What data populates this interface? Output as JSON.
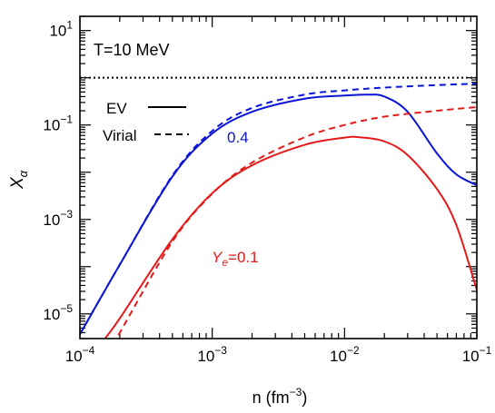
{
  "chart_data": {
    "type": "line",
    "x_scale": "log",
    "y_scale": "log",
    "xlim": [
      0.0001,
      0.1
    ],
    "ylim": [
      3e-06,
      20
    ],
    "xlabel_base": "n (fm",
    "xlabel_exp": "−3",
    "xlabel_tail": ")",
    "ylabel_main": "X",
    "ylabel_sub": "α",
    "x_ticks": [
      {
        "value": 0.0001,
        "base": "10",
        "exp": "−4"
      },
      {
        "value": 0.001,
        "base": "10",
        "exp": "−3"
      },
      {
        "value": 0.01,
        "base": "10",
        "exp": "−2"
      },
      {
        "value": 0.1,
        "base": "10",
        "exp": "−1"
      }
    ],
    "y_ticks": [
      {
        "value": 1e-05,
        "base": "10",
        "exp": "−5"
      },
      {
        "value": 0.001,
        "base": "10",
        "exp": "−3"
      },
      {
        "value": 0.1,
        "base": "10",
        "exp": "−1"
      },
      {
        "value": 10,
        "base": "10",
        "exp": "1"
      }
    ],
    "annotations": {
      "temperature": "T=10 MeV",
      "ye_high_label": "0.4",
      "ye_low_prefix": "Y",
      "ye_low_sub": "e",
      "ye_low_value": "=0.1"
    },
    "legend": {
      "placement": "top-left",
      "entries": [
        {
          "label": "EV",
          "style": "solid"
        },
        {
          "label": "Virial",
          "style": "dashed"
        }
      ]
    },
    "colors": {
      "blue": "#0a14d6",
      "red": "#e41a1a",
      "black": "#000000"
    },
    "reference_line": {
      "y": 1,
      "style": "dotted",
      "color": "#000000"
    },
    "series": [
      {
        "group": "0.4",
        "style": "solid",
        "color": "#0a14d6",
        "x": [
          0.0001,
          0.0002,
          0.0005,
          0.001,
          0.002,
          0.005,
          0.01,
          0.015,
          0.02,
          0.03,
          0.05,
          0.07,
          0.1
        ],
        "y": [
          3.7e-06,
          0.00011,
          0.0081,
          0.066,
          0.19,
          0.36,
          0.42,
          0.44,
          0.4,
          0.19,
          0.025,
          0.009,
          0.0053
        ]
      },
      {
        "group": "0.4",
        "style": "dashed",
        "color": "#0a14d6",
        "x": [
          0.0001,
          0.0002,
          0.0005,
          0.001,
          0.002,
          0.005,
          0.01,
          0.02,
          0.05,
          0.1
        ],
        "y": [
          3.7e-06,
          0.00011,
          0.0085,
          0.075,
          0.23,
          0.44,
          0.54,
          0.62,
          0.7,
          0.75
        ]
      },
      {
        "group": "0.1",
        "style": "solid",
        "color": "#e41a1a",
        "x": [
          0.00015,
          0.0002,
          0.0005,
          0.001,
          0.002,
          0.005,
          0.01,
          0.013,
          0.02,
          0.03,
          0.05,
          0.07,
          0.1
        ],
        "y": [
          2.7e-06,
          8e-06,
          0.00038,
          0.0036,
          0.014,
          0.038,
          0.054,
          0.055,
          0.045,
          0.023,
          0.0044,
          0.00076,
          3.2e-05
        ]
      },
      {
        "group": "0.1",
        "style": "dashed",
        "color": "#e41a1a",
        "x": [
          0.00018,
          0.0002,
          0.0005,
          0.001,
          0.002,
          0.005,
          0.01,
          0.02,
          0.05,
          0.1
        ],
        "y": [
          2.7e-06,
          4e-06,
          0.00034,
          0.0035,
          0.016,
          0.055,
          0.1,
          0.15,
          0.2,
          0.24
        ]
      }
    ]
  }
}
